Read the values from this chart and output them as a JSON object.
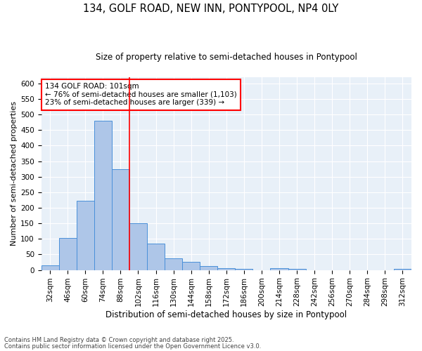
{
  "title1": "134, GOLF ROAD, NEW INN, PONTYPOOL, NP4 0LY",
  "title2": "Size of property relative to semi-detached houses in Pontypool",
  "xlabel": "Distribution of semi-detached houses by size in Pontypool",
  "ylabel": "Number of semi-detached properties",
  "footnote1": "Contains HM Land Registry data © Crown copyright and database right 2025.",
  "footnote2": "Contains public sector information licensed under the Open Government Licence v3.0.",
  "bar_labels": [
    "32sqm",
    "46sqm",
    "60sqm",
    "74sqm",
    "88sqm",
    "102sqm",
    "116sqm",
    "130sqm",
    "144sqm",
    "158sqm",
    "172sqm",
    "186sqm",
    "200sqm",
    "214sqm",
    "228sqm",
    "242sqm",
    "256sqm",
    "270sqm",
    "284sqm",
    "298sqm",
    "312sqm"
  ],
  "bar_values": [
    15,
    103,
    222,
    481,
    325,
    150,
    85,
    38,
    26,
    12,
    6,
    4,
    0,
    5,
    4,
    0,
    0,
    0,
    0,
    0,
    4
  ],
  "bar_color": "#aec6e8",
  "bar_edge_color": "#4a90d9",
  "red_line_index": 5,
  "annotation_label": "134 GOLF ROAD: 101sqm",
  "annotation_smaller": "← 76% of semi-detached houses are smaller (1,103)",
  "annotation_larger": "23% of semi-detached houses are larger (339) →",
  "ylim_max": 620,
  "yticks": [
    0,
    50,
    100,
    150,
    200,
    250,
    300,
    350,
    400,
    450,
    500,
    550,
    600
  ],
  "bg_color": "#e8f0f8",
  "title1_fontsize": 10.5,
  "title2_fontsize": 8.5,
  "xlabel_fontsize": 8.5,
  "ylabel_fontsize": 8,
  "tick_fontsize": 7.5,
  "ann_fontsize": 7.5,
  "footnote_fontsize": 6
}
